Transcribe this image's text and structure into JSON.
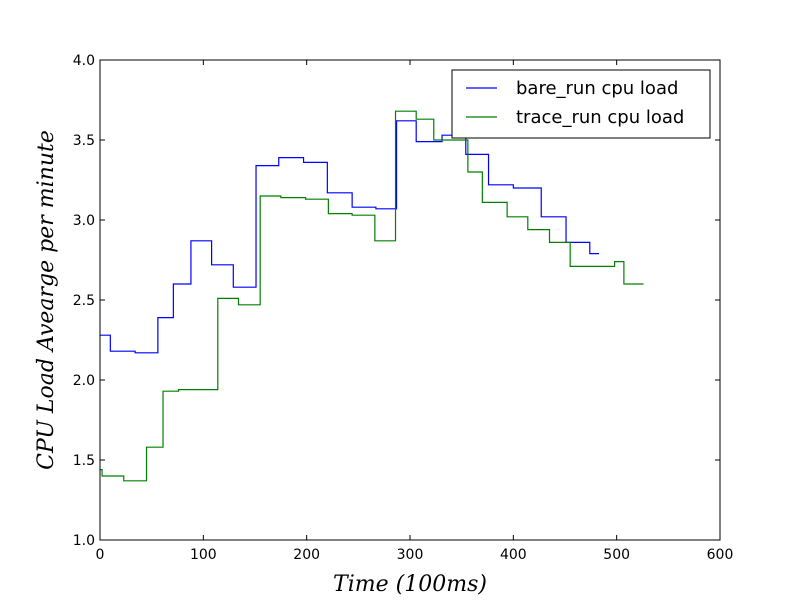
{
  "chart_data": {
    "type": "line",
    "title": "",
    "xlabel": "Time (100ms)",
    "ylabel": "CPU Load Avearge per  minute",
    "xlim": [
      0,
      600
    ],
    "ylim": [
      1.0,
      4.0
    ],
    "x_ticks": [
      0,
      100,
      200,
      300,
      400,
      500,
      600
    ],
    "x_tick_labels": [
      "0",
      "100",
      "200",
      "300",
      "400",
      "500",
      "600"
    ],
    "y_ticks": [
      1.0,
      1.5,
      2.0,
      2.5,
      3.0,
      3.5,
      4.0
    ],
    "y_tick_labels": [
      "1.0",
      "1.5",
      "2.0",
      "2.5",
      "3.0",
      "3.5",
      "4.0"
    ],
    "grid": false,
    "legend_position": "top-right",
    "series": [
      {
        "name": "bare_run cpu load",
        "color": "#0000ff",
        "step": true,
        "x": [
          0,
          10,
          34,
          56,
          71,
          88,
          108,
          129,
          151,
          173,
          197,
          220,
          244,
          267,
          287,
          306,
          331,
          354,
          376,
          400,
          427,
          451,
          474,
          483
        ],
        "y": [
          2.28,
          2.18,
          2.17,
          2.39,
          2.6,
          2.87,
          2.72,
          2.58,
          3.34,
          3.39,
          3.36,
          3.17,
          3.08,
          3.07,
          3.62,
          3.49,
          3.53,
          3.41,
          3.22,
          3.2,
          3.02,
          2.86,
          2.79,
          2.79
        ]
      },
      {
        "name": "trace_run cpu load",
        "color": "#008000",
        "step": true,
        "x": [
          0,
          2,
          23,
          45,
          61,
          76,
          114,
          134,
          155,
          175,
          199,
          221,
          244,
          266,
          286,
          306,
          323,
          343,
          356,
          370,
          394,
          414,
          435,
          455,
          477,
          498,
          507,
          526
        ],
        "y": [
          1.44,
          1.4,
          1.37,
          1.58,
          1.93,
          1.94,
          2.51,
          2.47,
          3.15,
          3.14,
          3.13,
          3.04,
          3.03,
          2.87,
          3.68,
          3.63,
          3.5,
          3.5,
          3.3,
          3.11,
          3.02,
          2.94,
          2.86,
          2.71,
          2.71,
          2.74,
          2.6,
          2.6
        ]
      }
    ]
  }
}
